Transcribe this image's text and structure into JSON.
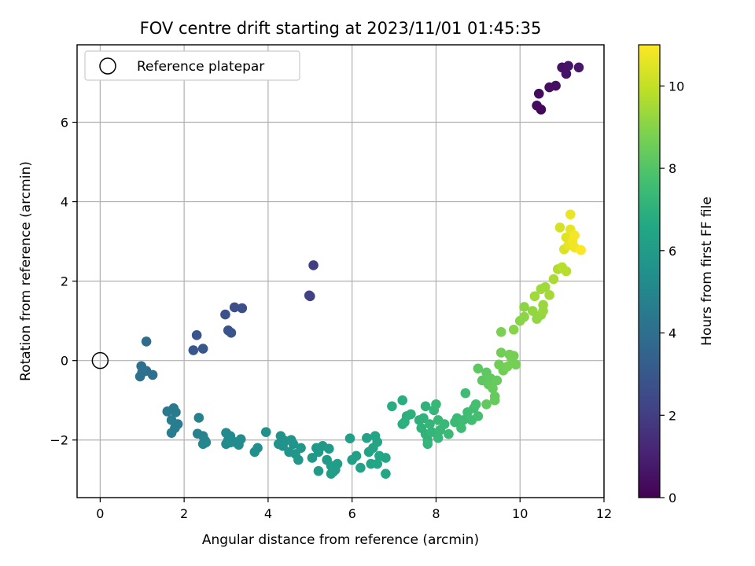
{
  "chart_data": {
    "type": "scatter",
    "title": "FOV centre drift starting at 2023/11/01 01:45:35",
    "xlabel": "Angular distance from reference (arcmin)",
    "ylabel": "Rotation from reference (arcmin)",
    "xlim": [
      -0.55,
      12.0
    ],
    "ylim": [
      -3.45,
      7.95
    ],
    "xticks": [
      0,
      2,
      4,
      6,
      8,
      10,
      12
    ],
    "yticks": [
      -2,
      0,
      2,
      4,
      6
    ],
    "grid": true,
    "legend": {
      "position": "top-left",
      "entries": [
        {
          "label": "Reference platepar",
          "marker": "open-circle"
        }
      ]
    },
    "reference_point": {
      "x": 0,
      "y": 0
    },
    "colorbar": {
      "label": "Hours from first FF file",
      "colormap": "viridis",
      "range": [
        0,
        11
      ],
      "ticks": [
        0,
        2,
        4,
        6,
        8,
        10
      ]
    },
    "points": [
      {
        "x": 10.5,
        "y": 6.32,
        "c": 0.2
      },
      {
        "x": 10.4,
        "y": 6.42,
        "c": 0.3
      },
      {
        "x": 10.45,
        "y": 6.72,
        "c": 0.3
      },
      {
        "x": 10.7,
        "y": 6.88,
        "c": 0.4
      },
      {
        "x": 10.85,
        "y": 6.92,
        "c": 0.4
      },
      {
        "x": 11.0,
        "y": 7.38,
        "c": 0.5
      },
      {
        "x": 11.15,
        "y": 7.42,
        "c": 0.6
      },
      {
        "x": 11.1,
        "y": 7.22,
        "c": 0.6
      },
      {
        "x": 11.4,
        "y": 7.38,
        "c": 0.7
      },
      {
        "x": 5.08,
        "y": 2.4,
        "c": 2.0
      },
      {
        "x": 4.98,
        "y": 1.64,
        "c": 2.1
      },
      {
        "x": 5.0,
        "y": 1.62,
        "c": 2.1
      },
      {
        "x": 3.2,
        "y": 1.34,
        "c": 2.6
      },
      {
        "x": 3.38,
        "y": 1.32,
        "c": 2.6
      },
      {
        "x": 2.98,
        "y": 1.16,
        "c": 2.7
      },
      {
        "x": 3.05,
        "y": 0.76,
        "c": 2.8
      },
      {
        "x": 3.12,
        "y": 0.7,
        "c": 2.8
      },
      {
        "x": 2.3,
        "y": 0.64,
        "c": 2.9
      },
      {
        "x": 2.22,
        "y": 0.26,
        "c": 3.0
      },
      {
        "x": 2.45,
        "y": 0.3,
        "c": 3.0
      },
      {
        "x": 1.1,
        "y": 0.48,
        "c": 3.9
      },
      {
        "x": 0.98,
        "y": -0.14,
        "c": 4.0
      },
      {
        "x": 1.1,
        "y": -0.26,
        "c": 4.0
      },
      {
        "x": 0.95,
        "y": -0.4,
        "c": 4.1
      },
      {
        "x": 1.25,
        "y": -0.36,
        "c": 4.1
      },
      {
        "x": 1.0,
        "y": -0.3,
        "c": 4.1
      },
      {
        "x": 1.6,
        "y": -1.28,
        "c": 4.5
      },
      {
        "x": 1.75,
        "y": -1.2,
        "c": 4.5
      },
      {
        "x": 1.8,
        "y": -1.3,
        "c": 4.5
      },
      {
        "x": 1.7,
        "y": -1.5,
        "c": 4.6
      },
      {
        "x": 1.85,
        "y": -1.6,
        "c": 4.6
      },
      {
        "x": 1.78,
        "y": -1.7,
        "c": 4.6
      },
      {
        "x": 1.7,
        "y": -1.82,
        "c": 4.6
      },
      {
        "x": 2.35,
        "y": -1.44,
        "c": 4.8
      },
      {
        "x": 2.32,
        "y": -1.84,
        "c": 4.9
      },
      {
        "x": 2.45,
        "y": -1.9,
        "c": 4.9
      },
      {
        "x": 2.5,
        "y": -2.02,
        "c": 5.0
      },
      {
        "x": 2.45,
        "y": -2.1,
        "c": 5.0
      },
      {
        "x": 2.52,
        "y": -2.06,
        "c": 5.0
      },
      {
        "x": 3.0,
        "y": -1.82,
        "c": 5.2
      },
      {
        "x": 3.1,
        "y": -1.9,
        "c": 5.2
      },
      {
        "x": 3.05,
        "y": -2.0,
        "c": 5.2
      },
      {
        "x": 3.2,
        "y": -2.05,
        "c": 5.3
      },
      {
        "x": 3.0,
        "y": -2.1,
        "c": 5.3
      },
      {
        "x": 3.35,
        "y": -1.98,
        "c": 5.3
      },
      {
        "x": 3.3,
        "y": -2.12,
        "c": 5.3
      },
      {
        "x": 3.1,
        "y": -2.06,
        "c": 5.3
      },
      {
        "x": 3.68,
        "y": -2.3,
        "c": 5.4
      },
      {
        "x": 3.75,
        "y": -2.2,
        "c": 5.4
      },
      {
        "x": 3.95,
        "y": -1.8,
        "c": 5.5
      },
      {
        "x": 4.25,
        "y": -2.1,
        "c": 5.6
      },
      {
        "x": 4.3,
        "y": -1.9,
        "c": 5.6
      },
      {
        "x": 4.4,
        "y": -2.02,
        "c": 5.6
      },
      {
        "x": 4.35,
        "y": -2.15,
        "c": 5.6
      },
      {
        "x": 4.55,
        "y": -2.0,
        "c": 5.7
      },
      {
        "x": 4.6,
        "y": -2.1,
        "c": 5.7
      },
      {
        "x": 4.5,
        "y": -2.3,
        "c": 5.7
      },
      {
        "x": 4.65,
        "y": -2.35,
        "c": 5.8
      },
      {
        "x": 4.78,
        "y": -2.2,
        "c": 5.8
      },
      {
        "x": 4.72,
        "y": -2.5,
        "c": 5.8
      },
      {
        "x": 5.05,
        "y": -2.45,
        "c": 5.9
      },
      {
        "x": 5.15,
        "y": -2.2,
        "c": 5.9
      },
      {
        "x": 5.2,
        "y": -2.3,
        "c": 5.9
      },
      {
        "x": 5.3,
        "y": -2.15,
        "c": 5.9
      },
      {
        "x": 5.2,
        "y": -2.78,
        "c": 6.0
      },
      {
        "x": 5.45,
        "y": -2.22,
        "c": 6.0
      },
      {
        "x": 5.4,
        "y": -2.5,
        "c": 6.0
      },
      {
        "x": 5.5,
        "y": -2.65,
        "c": 6.1
      },
      {
        "x": 5.55,
        "y": -2.8,
        "c": 6.1
      },
      {
        "x": 5.6,
        "y": -2.75,
        "c": 6.1
      },
      {
        "x": 5.65,
        "y": -2.6,
        "c": 6.1
      },
      {
        "x": 5.5,
        "y": -2.85,
        "c": 6.1
      },
      {
        "x": 5.95,
        "y": -1.96,
        "c": 6.2
      },
      {
        "x": 6.0,
        "y": -2.5,
        "c": 6.2
      },
      {
        "x": 6.1,
        "y": -2.4,
        "c": 6.2
      },
      {
        "x": 6.2,
        "y": -2.7,
        "c": 6.3
      },
      {
        "x": 6.35,
        "y": -1.95,
        "c": 6.3
      },
      {
        "x": 6.4,
        "y": -2.3,
        "c": 6.3
      },
      {
        "x": 6.5,
        "y": -2.2,
        "c": 6.4
      },
      {
        "x": 6.45,
        "y": -2.6,
        "c": 6.4
      },
      {
        "x": 6.55,
        "y": -1.9,
        "c": 6.4
      },
      {
        "x": 6.6,
        "y": -2.05,
        "c": 6.4
      },
      {
        "x": 6.6,
        "y": -2.6,
        "c": 6.5
      },
      {
        "x": 6.65,
        "y": -2.4,
        "c": 6.5
      },
      {
        "x": 6.8,
        "y": -2.45,
        "c": 6.5
      },
      {
        "x": 6.8,
        "y": -2.85,
        "c": 6.5
      },
      {
        "x": 6.95,
        "y": -1.15,
        "c": 6.8
      },
      {
        "x": 7.2,
        "y": -1.0,
        "c": 6.9
      },
      {
        "x": 7.2,
        "y": -1.6,
        "c": 6.9
      },
      {
        "x": 7.3,
        "y": -1.4,
        "c": 6.9
      },
      {
        "x": 7.25,
        "y": -1.55,
        "c": 7.0
      },
      {
        "x": 7.4,
        "y": -1.35,
        "c": 7.0
      },
      {
        "x": 7.6,
        "y": -1.5,
        "c": 7.0
      },
      {
        "x": 7.65,
        "y": -1.7,
        "c": 7.1
      },
      {
        "x": 7.7,
        "y": -1.45,
        "c": 7.1
      },
      {
        "x": 7.75,
        "y": -1.15,
        "c": 7.1
      },
      {
        "x": 7.75,
        "y": -1.85,
        "c": 7.1
      },
      {
        "x": 7.8,
        "y": -2.0,
        "c": 7.1
      },
      {
        "x": 7.85,
        "y": -1.6,
        "c": 7.2
      },
      {
        "x": 7.9,
        "y": -1.8,
        "c": 7.2
      },
      {
        "x": 7.95,
        "y": -1.25,
        "c": 7.2
      },
      {
        "x": 8.0,
        "y": -1.1,
        "c": 7.3
      },
      {
        "x": 8.05,
        "y": -1.5,
        "c": 7.3
      },
      {
        "x": 8.1,
        "y": -1.75,
        "c": 7.3
      },
      {
        "x": 8.2,
        "y": -1.6,
        "c": 7.3
      },
      {
        "x": 7.8,
        "y": -2.1,
        "c": 7.2
      },
      {
        "x": 8.05,
        "y": -1.95,
        "c": 7.3
      },
      {
        "x": 8.3,
        "y": -1.85,
        "c": 7.4
      },
      {
        "x": 8.45,
        "y": -1.55,
        "c": 7.4
      },
      {
        "x": 8.5,
        "y": -1.45,
        "c": 7.4
      },
      {
        "x": 8.6,
        "y": -1.7,
        "c": 7.5
      },
      {
        "x": 8.65,
        "y": -1.5,
        "c": 7.5
      },
      {
        "x": 8.7,
        "y": -0.82,
        "c": 7.5
      },
      {
        "x": 8.75,
        "y": -1.3,
        "c": 7.6
      },
      {
        "x": 8.9,
        "y": -1.2,
        "c": 7.6
      },
      {
        "x": 8.85,
        "y": -1.5,
        "c": 7.6
      },
      {
        "x": 8.95,
        "y": -1.1,
        "c": 7.7
      },
      {
        "x": 9.0,
        "y": -1.4,
        "c": 7.7
      },
      {
        "x": 9.0,
        "y": -0.2,
        "c": 8.2
      },
      {
        "x": 9.1,
        "y": -0.5,
        "c": 8.2
      },
      {
        "x": 9.2,
        "y": -0.3,
        "c": 8.2
      },
      {
        "x": 9.25,
        "y": -0.6,
        "c": 8.3
      },
      {
        "x": 9.2,
        "y": -1.1,
        "c": 8.3
      },
      {
        "x": 9.3,
        "y": -0.45,
        "c": 8.3
      },
      {
        "x": 9.35,
        "y": -0.7,
        "c": 8.4
      },
      {
        "x": 9.4,
        "y": -0.9,
        "c": 8.4
      },
      {
        "x": 9.45,
        "y": -0.5,
        "c": 8.4
      },
      {
        "x": 9.4,
        "y": -1.0,
        "c": 8.4
      },
      {
        "x": 9.5,
        "y": -0.1,
        "c": 8.6
      },
      {
        "x": 9.55,
        "y": 0.2,
        "c": 8.6
      },
      {
        "x": 9.6,
        "y": -0.25,
        "c": 8.6
      },
      {
        "x": 9.7,
        "y": -0.15,
        "c": 8.7
      },
      {
        "x": 9.8,
        "y": 0.05,
        "c": 8.7
      },
      {
        "x": 9.85,
        "y": 0.12,
        "c": 8.7
      },
      {
        "x": 9.9,
        "y": -0.1,
        "c": 8.7
      },
      {
        "x": 9.75,
        "y": 0.15,
        "c": 8.7
      },
      {
        "x": 9.55,
        "y": 0.72,
        "c": 8.8
      },
      {
        "x": 9.85,
        "y": 0.78,
        "c": 9.0
      },
      {
        "x": 10.0,
        "y": 1.0,
        "c": 9.0
      },
      {
        "x": 10.1,
        "y": 1.1,
        "c": 9.1
      },
      {
        "x": 10.1,
        "y": 1.35,
        "c": 9.1
      },
      {
        "x": 10.3,
        "y": 1.25,
        "c": 9.2
      },
      {
        "x": 10.4,
        "y": 1.05,
        "c": 9.2
      },
      {
        "x": 10.5,
        "y": 1.15,
        "c": 9.2
      },
      {
        "x": 10.55,
        "y": 1.4,
        "c": 9.3
      },
      {
        "x": 10.55,
        "y": 1.25,
        "c": 9.3
      },
      {
        "x": 10.35,
        "y": 1.62,
        "c": 9.4
      },
      {
        "x": 10.5,
        "y": 1.8,
        "c": 9.4
      },
      {
        "x": 10.6,
        "y": 1.85,
        "c": 9.4
      },
      {
        "x": 10.7,
        "y": 1.65,
        "c": 9.5
      },
      {
        "x": 10.8,
        "y": 2.05,
        "c": 9.6
      },
      {
        "x": 10.9,
        "y": 2.3,
        "c": 9.7
      },
      {
        "x": 11.0,
        "y": 2.35,
        "c": 9.8
      },
      {
        "x": 11.1,
        "y": 2.25,
        "c": 9.8
      },
      {
        "x": 10.95,
        "y": 3.35,
        "c": 10.3
      },
      {
        "x": 11.05,
        "y": 2.8,
        "c": 10.4
      },
      {
        "x": 11.1,
        "y": 3.1,
        "c": 10.5
      },
      {
        "x": 11.15,
        "y": 2.9,
        "c": 10.6
      },
      {
        "x": 11.2,
        "y": 3.3,
        "c": 10.6
      },
      {
        "x": 11.2,
        "y": 3.68,
        "c": 10.7
      },
      {
        "x": 11.25,
        "y": 3.0,
        "c": 10.8
      },
      {
        "x": 11.3,
        "y": 2.85,
        "c": 10.8
      },
      {
        "x": 11.3,
        "y": 3.15,
        "c": 10.9
      },
      {
        "x": 11.45,
        "y": 2.78,
        "c": 11.0
      }
    ]
  }
}
